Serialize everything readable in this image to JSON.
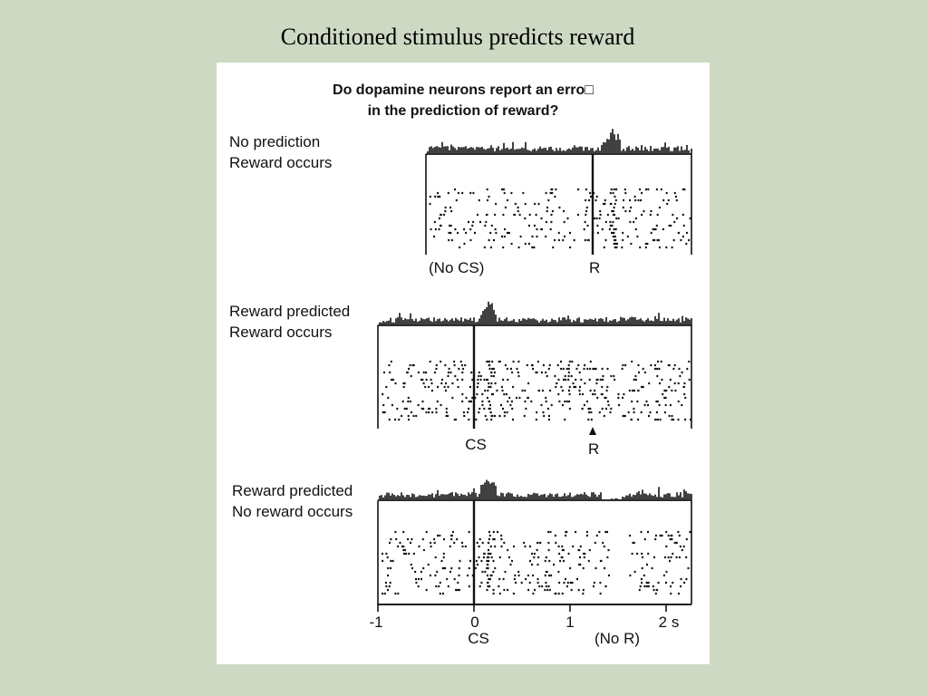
{
  "slide": {
    "title": "Conditioned stimulus predicts reward",
    "background": "#cdd9c3",
    "panel_background": "#ffffff"
  },
  "figure": {
    "heading_line1": "Do dopamine neurons report an erro□",
    "heading_line2": "in the prediction of reward?",
    "panels": [
      {
        "label_line1": "No prediction",
        "label_line2": "Reward occurs",
        "left_marker": "(No CS)",
        "event_marker": "R",
        "has_cs": false,
        "reward_delivered": true,
        "reward_time_s": 1.25,
        "burst_at": "reward"
      },
      {
        "label_line1": "Reward predicted",
        "label_line2": "Reward occurs",
        "cs_marker": "CS",
        "reward_marker": "R",
        "has_cs": true,
        "reward_delivered": true,
        "reward_time_s": 1.25,
        "burst_at": "CS"
      },
      {
        "label_line1": "Reward predicted",
        "label_line2": "No reward occurs",
        "has_cs": true,
        "reward_delivered": false,
        "burst_at": "CS",
        "depression_after_s": 1.25
      }
    ],
    "axis": {
      "ticks": [
        "-1",
        "0",
        "1",
        "2 s"
      ],
      "tick_values_s": [
        -1,
        0,
        1,
        2
      ],
      "cs_label": "CS",
      "no_reward_label": "(No R)"
    }
  }
}
